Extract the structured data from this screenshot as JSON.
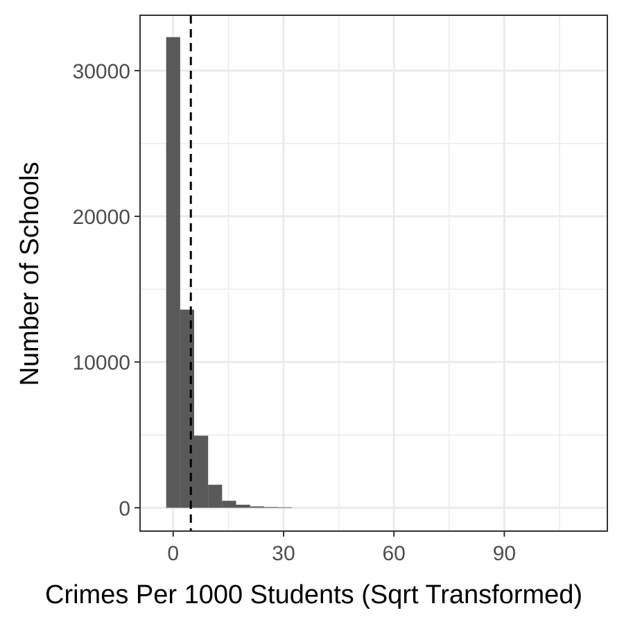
{
  "chart_data": {
    "type": "bar",
    "xlabel": "Crimes Per 1000 Students (Sqrt Transformed)",
    "ylabel": "Number of Schools",
    "xlim": [
      -9,
      118
    ],
    "ylim": [
      -1600,
      33800
    ],
    "x_ticks": [
      0,
      30,
      60,
      90
    ],
    "y_ticks": [
      0,
      10000,
      20000,
      30000
    ],
    "x_tick_labels": [
      "0",
      "30",
      "60",
      "90"
    ],
    "y_tick_labels": [
      "0",
      "10000",
      "20000",
      "30000"
    ],
    "x_minor_grid": [
      -15,
      15,
      45,
      75,
      105
    ],
    "y_minor_grid": [
      5000,
      15000,
      25000
    ],
    "grid": true,
    "bin_width": 3.8,
    "bin_starts": [
      -1.9,
      1.9,
      5.7,
      9.5,
      13.3,
      17.1,
      20.9,
      24.7,
      28.5
    ],
    "values": [
      32300,
      13600,
      4950,
      1580,
      480,
      210,
      95,
      50,
      30
    ],
    "reference_line": {
      "x": 4.8,
      "style": "dashed"
    },
    "colors": {
      "bar": "#595959",
      "grid": "#ebebeb",
      "panel_border": "#333333",
      "reference_line": "#000000"
    }
  }
}
